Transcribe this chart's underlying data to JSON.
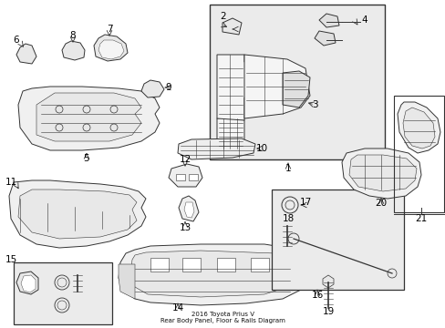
{
  "bg_color": "#ffffff",
  "line_color": "#333333",
  "fill_color": "#f5f5f5",
  "box_fill": "#ebebeb",
  "title": "2016 Toyota Prius V\nRear Body Panel, Floor & Rails Diagram",
  "figsize": [
    4.89,
    3.6
  ],
  "dpi": 100
}
